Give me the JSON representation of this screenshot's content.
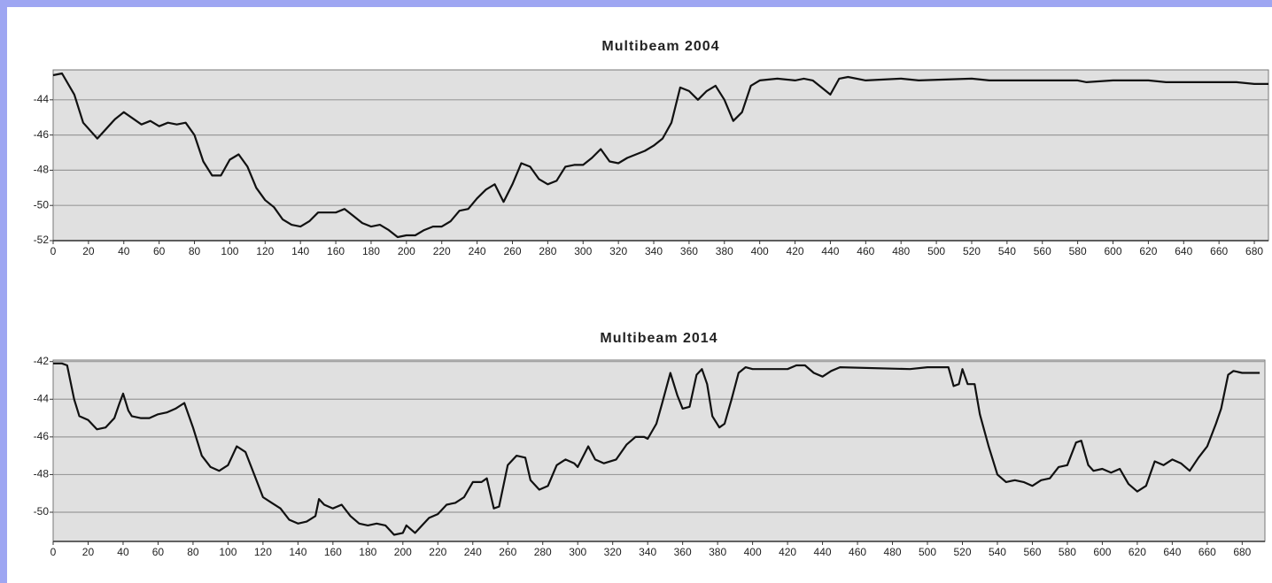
{
  "chart_data": [
    {
      "type": "line",
      "title": "Multibeam 2004",
      "color": "#111111",
      "grid": true,
      "xlim": [
        0,
        688
      ],
      "ylim": [
        -52,
        -42.3
      ],
      "xticks": [
        0,
        20,
        40,
        60,
        80,
        100,
        120,
        140,
        160,
        180,
        200,
        220,
        240,
        260,
        280,
        300,
        320,
        340,
        360,
        380,
        400,
        420,
        440,
        460,
        480,
        500,
        520,
        540,
        560,
        580,
        600,
        620,
        640,
        660,
        680
      ],
      "yticks": [
        -52,
        -50,
        -48,
        -46,
        -44
      ],
      "x": [
        0,
        5,
        12,
        17,
        25,
        35,
        40,
        50,
        55,
        60,
        65,
        70,
        75,
        80,
        85,
        90,
        95,
        100,
        105,
        110,
        115,
        120,
        125,
        130,
        135,
        140,
        145,
        150,
        155,
        160,
        165,
        170,
        175,
        180,
        185,
        190,
        195,
        200,
        205,
        210,
        215,
        220,
        225,
        230,
        235,
        240,
        245,
        250,
        255,
        260,
        265,
        270,
        275,
        280,
        285,
        290,
        295,
        300,
        305,
        310,
        315,
        320,
        325,
        330,
        335,
        340,
        345,
        350,
        355,
        360,
        365,
        370,
        375,
        380,
        385,
        390,
        395,
        400,
        410,
        420,
        425,
        430,
        435,
        440,
        445,
        450,
        460,
        480,
        490,
        520,
        530,
        580,
        585,
        600,
        620,
        630,
        670,
        680,
        688
      ],
      "values": [
        -42.6,
        -42.5,
        -43.7,
        -45.3,
        -46.2,
        -45.1,
        -44.7,
        -45.4,
        -45.2,
        -45.5,
        -45.3,
        -45.4,
        -45.3,
        -46,
        -47.5,
        -48.3,
        -48.3,
        -47.4,
        -47.1,
        -47.8,
        -49,
        -49.7,
        -50.1,
        -50.8,
        -51.1,
        -51.2,
        -50.9,
        -50.4,
        -50.4,
        -50.4,
        -50.2,
        -50.6,
        -51,
        -51.2,
        -51.1,
        -51.4,
        -51.8,
        -51.7,
        -51.7,
        -51.4,
        -51.2,
        -51.2,
        -50.9,
        -50.3,
        -50.2,
        -49.6,
        -49.1,
        -48.8,
        -49.8,
        -48.8,
        -47.6,
        -47.8,
        -48.5,
        -48.8,
        -48.6,
        -47.8,
        -47.7,
        -47.7,
        -47.3,
        -46.8,
        -47.5,
        -47.6,
        -47.3,
        -47.1,
        -46.9,
        -46.6,
        -46.2,
        -45.3,
        -43.3,
        -43.5,
        -44,
        -43.5,
        -43.2,
        -44,
        -45.2,
        -44.7,
        -43.2,
        -42.9,
        -42.8,
        -42.9,
        -42.8,
        -42.9,
        -43.3,
        -43.7,
        -42.8,
        -42.7,
        -42.9,
        -42.8,
        -42.9,
        -42.8,
        -42.9,
        -42.9,
        -43,
        -42.9,
        -42.9,
        -43,
        -43,
        -43.1,
        -43.1
      ]
    },
    {
      "type": "line",
      "title": "Multibeam 2014",
      "color": "#111111",
      "grid": true,
      "xlim": [
        0,
        693
      ],
      "ylim": [
        -51.55,
        -41.92
      ],
      "xticks": [
        0,
        20,
        40,
        60,
        80,
        100,
        120,
        140,
        160,
        180,
        200,
        220,
        240,
        260,
        280,
        300,
        320,
        340,
        360,
        380,
        400,
        420,
        440,
        460,
        480,
        500,
        520,
        540,
        560,
        580,
        600,
        620,
        640,
        660,
        680
      ],
      "yticks": [
        -50,
        -48,
        -46,
        -44,
        -42
      ],
      "x": [
        0,
        5,
        8,
        12,
        15,
        20,
        25,
        30,
        35,
        38,
        40,
        43,
        45,
        50,
        55,
        60,
        65,
        70,
        75,
        80,
        85,
        90,
        95,
        100,
        105,
        110,
        115,
        120,
        125,
        130,
        135,
        140,
        145,
        150,
        152,
        155,
        160,
        165,
        170,
        175,
        180,
        185,
        190,
        195,
        200,
        202,
        207,
        210,
        215,
        220,
        225,
        230,
        235,
        240,
        245,
        248,
        252,
        255,
        260,
        265,
        270,
        273,
        278,
        283,
        288,
        293,
        298,
        300,
        306,
        310,
        315,
        322,
        328,
        333,
        338,
        340,
        345,
        348,
        353,
        357,
        360,
        364,
        368,
        371,
        374,
        377,
        381,
        384,
        388,
        392,
        396,
        400,
        420,
        425,
        430,
        435,
        440,
        445,
        450,
        490,
        500,
        512,
        515,
        518,
        520,
        523,
        527,
        530,
        535,
        540,
        545,
        550,
        555,
        560,
        565,
        570,
        575,
        580,
        585,
        588,
        592,
        595,
        600,
        605,
        610,
        615,
        620,
        625,
        630,
        635,
        640,
        645,
        650,
        655,
        660,
        665,
        668,
        672,
        675,
        680,
        690
      ],
      "values": [
        -42.1,
        -42.1,
        -42.2,
        -44,
        -44.9,
        -45.1,
        -45.6,
        -45.5,
        -45,
        -44.2,
        -43.7,
        -44.6,
        -44.9,
        -45,
        -45,
        -44.8,
        -44.7,
        -44.5,
        -44.2,
        -45.5,
        -47,
        -47.6,
        -47.8,
        -47.5,
        -46.5,
        -46.8,
        -48,
        -49.2,
        -49.5,
        -49.8,
        -50.4,
        -50.6,
        -50.5,
        -50.2,
        -49.3,
        -49.6,
        -49.8,
        -49.6,
        -50.2,
        -50.6,
        -50.7,
        -50.6,
        -50.7,
        -51.2,
        -51.1,
        -50.7,
        -51.1,
        -50.8,
        -50.3,
        -50.1,
        -49.6,
        -49.5,
        -49.2,
        -48.4,
        -48.4,
        -48.2,
        -49.8,
        -49.7,
        -47.5,
        -47,
        -47.1,
        -48.3,
        -48.8,
        -48.6,
        -47.5,
        -47.2,
        -47.4,
        -47.6,
        -46.5,
        -47.2,
        -47.4,
        -47.2,
        -46.4,
        -46,
        -46,
        -46.1,
        -45.3,
        -44.3,
        -42.6,
        -43.8,
        -44.5,
        -44.4,
        -42.7,
        -42.4,
        -43.2,
        -44.9,
        -45.5,
        -45.3,
        -44,
        -42.6,
        -42.3,
        -42.4,
        -42.4,
        -42.2,
        -42.2,
        -42.6,
        -42.8,
        -42.5,
        -42.3,
        -42.4,
        -42.3,
        -42.3,
        -43.3,
        -43.2,
        -42.4,
        -43.2,
        -43.2,
        -44.8,
        -46.5,
        -48,
        -48.4,
        -48.3,
        -48.4,
        -48.6,
        -48.3,
        -48.2,
        -47.6,
        -47.5,
        -46.3,
        -46.2,
        -47.5,
        -47.8,
        -47.7,
        -47.9,
        -47.7,
        -48.5,
        -48.9,
        -48.6,
        -47.3,
        -47.5,
        -47.2,
        -47.4,
        -47.8,
        -47.1,
        -46.5,
        -45.3,
        -44.5,
        -42.7,
        -42.5,
        -42.6,
        -42.6
      ]
    }
  ]
}
